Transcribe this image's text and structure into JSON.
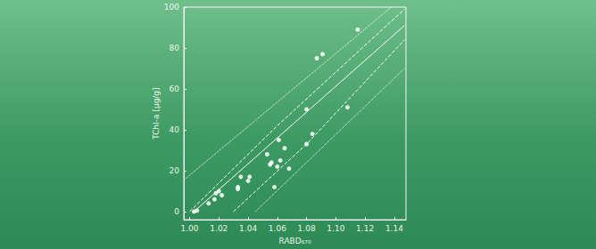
{
  "chart_data": {
    "type": "scatter",
    "x_label": "RABD₆₇₀",
    "y_label": "TChl-a [µg/g]",
    "xlim": [
      0.996,
      1.148
    ],
    "ylim": [
      -4,
      100
    ],
    "xticks": [
      {
        "value": 1.0,
        "label": "1.00"
      },
      {
        "value": 1.02,
        "label": "1.02"
      },
      {
        "value": 1.04,
        "label": "1.04"
      },
      {
        "value": 1.06,
        "label": "1.06"
      },
      {
        "value": 1.08,
        "label": "1.08"
      },
      {
        "value": 1.1,
        "label": "1.10"
      },
      {
        "value": 1.12,
        "label": "1.12"
      },
      {
        "value": 1.14,
        "label": "1.14"
      }
    ],
    "yticks": [
      0,
      20,
      40,
      60,
      80,
      100
    ],
    "grid": false,
    "series": [
      {
        "type": "scatter",
        "marker": "circle",
        "color": "#ffffff",
        "x": [
          1.003,
          1.005,
          1.013,
          1.017,
          1.018,
          1.02,
          1.022,
          1.033,
          1.033,
          1.035,
          1.04,
          1.041,
          1.053,
          1.055,
          1.056,
          1.058,
          1.06,
          1.061,
          1.062,
          1.065,
          1.068,
          1.08,
          1.08,
          1.084,
          1.087,
          1.091,
          1.108,
          1.115
        ],
        "values": [
          0,
          0.5,
          4,
          6,
          9,
          10,
          8,
          12,
          11,
          17,
          15,
          17,
          28,
          23,
          24,
          12,
          22,
          35,
          25,
          31,
          21,
          50,
          33,
          38,
          75,
          77,
          51,
          89
        ]
      },
      {
        "type": "line",
        "line_style": "solid",
        "color": "#ffffff",
        "x": [
          1.003,
          1.147
        ],
        "values": [
          0,
          91
        ]
      },
      {
        "type": "line",
        "line_style": "dashed",
        "color": "#ffffff",
        "x": [
          1.0,
          1.06,
          1.147
        ],
        "values": [
          0,
          42,
          99
        ]
      },
      {
        "type": "line",
        "line_style": "dashed",
        "color": "#ffffff",
        "x": [
          1.03,
          1.08,
          1.147
        ],
        "values": [
          0,
          33,
          84
        ]
      },
      {
        "type": "line",
        "line_style": "dotted",
        "color": "#ffffff",
        "x": [
          0.997,
          1.138
        ],
        "values": [
          16,
          100
        ]
      },
      {
        "type": "line",
        "line_style": "dotted",
        "color": "#ffffff",
        "x": [
          1.045,
          1.147
        ],
        "values": [
          0,
          70
        ]
      }
    ]
  }
}
